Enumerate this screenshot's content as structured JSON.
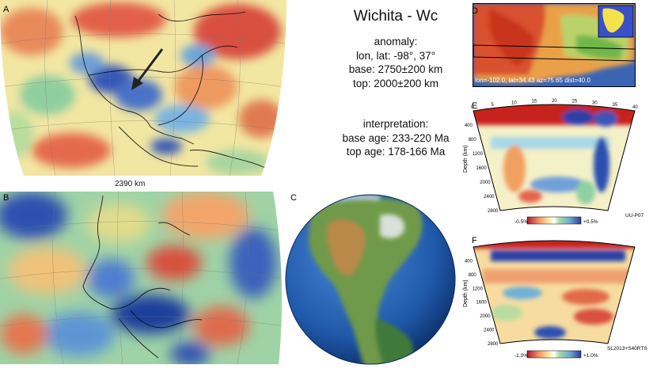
{
  "title": "Wichita - Wc",
  "anomaly": {
    "heading": "anomaly:",
    "lonlat": "lon, lat: -98°, 37°",
    "base": "base: 2750±200 km",
    "top": "top: 2000±200 km"
  },
  "interpretation": {
    "heading": "interpretation:",
    "base_age": "base age: 233-220 Ma",
    "top_age": "top age: 178-166 Ma"
  },
  "panels": {
    "a": {
      "letter": "A",
      "depth_label": "2390 km"
    },
    "b": {
      "letter": "B"
    },
    "c": {
      "letter": "C"
    },
    "d": {
      "letter": "D",
      "caption": "lon=-102.0, lat=34.43 az=75.65 dist=40.0"
    },
    "e": {
      "letter": "E",
      "model": "UU-P07",
      "scale_min": "-0.5%",
      "scale_max": "+0.5%",
      "x_ticks": [
        "0",
        "5",
        "10",
        "15",
        "20",
        "25",
        "30",
        "35",
        "40"
      ],
      "depth_ticks": [
        "400",
        "800",
        "1200",
        "1600",
        "2000",
        "2400",
        "2800"
      ],
      "depth_axis": "Depth (km)"
    },
    "f": {
      "letter": "F",
      "model": "SL2013+S40RTS",
      "scale_min": "-1.0%",
      "scale_max": "+1.0%",
      "depth_ticks": [
        "400",
        "800",
        "1200",
        "1600",
        "2000",
        "2400",
        "2800"
      ],
      "depth_axis": "Depth (km)"
    }
  },
  "colors": {
    "fast": "#1f3fa8",
    "slow": "#c8201c",
    "neutral": "#f5f0b0",
    "ocean": "#2a62b8"
  }
}
